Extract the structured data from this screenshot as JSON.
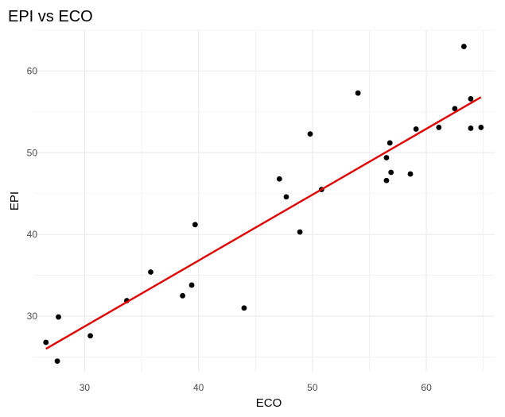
{
  "chart_data": {
    "type": "scatter",
    "title": "EPI vs ECO",
    "xlabel": "ECO",
    "ylabel": "EPI",
    "xlim": [
      25.5,
      66.0
    ],
    "ylim": [
      23.2,
      65.0
    ],
    "xticks": [
      30,
      40,
      50,
      60
    ],
    "yticks": [
      30,
      40,
      50,
      60
    ],
    "grid": true,
    "points": [
      {
        "x": 26.6,
        "y": 26.8
      },
      {
        "x": 27.6,
        "y": 24.5
      },
      {
        "x": 27.7,
        "y": 29.9
      },
      {
        "x": 30.5,
        "y": 27.6
      },
      {
        "x": 33.7,
        "y": 31.9
      },
      {
        "x": 35.8,
        "y": 35.4
      },
      {
        "x": 38.6,
        "y": 32.5
      },
      {
        "x": 39.4,
        "y": 33.8
      },
      {
        "x": 39.7,
        "y": 41.2
      },
      {
        "x": 44.0,
        "y": 31.0
      },
      {
        "x": 47.1,
        "y": 46.8
      },
      {
        "x": 47.7,
        "y": 44.6
      },
      {
        "x": 48.9,
        "y": 40.3
      },
      {
        "x": 49.8,
        "y": 52.3
      },
      {
        "x": 50.8,
        "y": 45.5
      },
      {
        "x": 54.0,
        "y": 57.3
      },
      {
        "x": 56.5,
        "y": 49.4
      },
      {
        "x": 56.8,
        "y": 51.2
      },
      {
        "x": 56.5,
        "y": 46.6
      },
      {
        "x": 56.9,
        "y": 47.6
      },
      {
        "x": 58.6,
        "y": 47.4
      },
      {
        "x": 59.1,
        "y": 52.9
      },
      {
        "x": 61.1,
        "y": 53.1
      },
      {
        "x": 62.5,
        "y": 55.4
      },
      {
        "x": 63.3,
        "y": 63.0
      },
      {
        "x": 63.9,
        "y": 56.6
      },
      {
        "x": 63.9,
        "y": 53.0
      },
      {
        "x": 64.8,
        "y": 53.1
      }
    ],
    "trend_line": {
      "x": [
        26.6,
        64.8
      ],
      "y": [
        26.0,
        56.8
      ]
    },
    "colors": {
      "points": "#000000",
      "trend_line": "#e00000",
      "grid": "#ebebeb",
      "tick_label": "#4d4d4d"
    }
  }
}
